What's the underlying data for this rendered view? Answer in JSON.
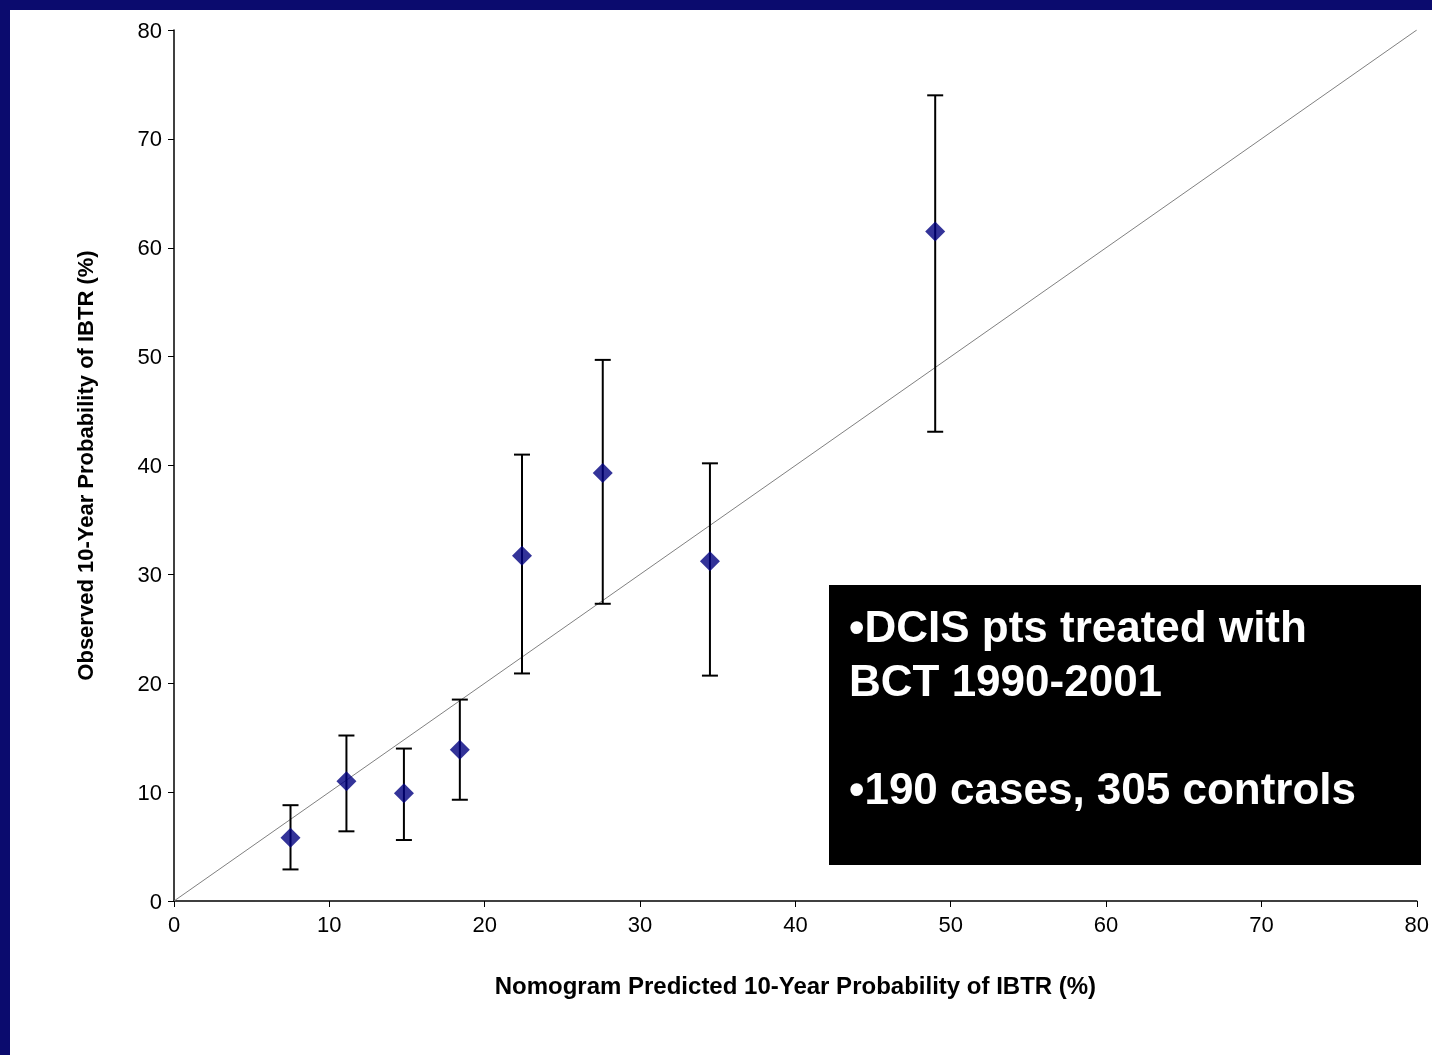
{
  "chart_data": {
    "type": "scatter",
    "xlabel": "Nomogram Predicted 10-Year Probability of IBTR (%)",
    "ylabel": "Observed 10-Year Probability of IBTR (%)",
    "annotations": [
      "•DCIS pts treated with BCT 1990-2001",
      "•190 cases, 305 controls"
    ],
    "series": [
      {
        "color": "#000080",
        "marker": "diamond",
        "x": [
          7.5,
          11.1,
          14.8,
          18.4,
          22.4,
          27.6,
          34.5,
          49.0
        ],
        "values": [
          5.8,
          11.0,
          9.9,
          13.9,
          31.7,
          39.3,
          31.2,
          61.5
        ],
        "errors": [
          [
            2.9,
            8.8
          ],
          [
            6.4,
            15.2
          ],
          [
            5.6,
            14.0
          ],
          [
            9.3,
            18.5
          ],
          [
            20.9,
            41.0
          ],
          [
            27.3,
            49.7
          ],
          [
            20.7,
            40.2
          ],
          [
            43.1,
            74.0
          ]
        ]
      },
      {
        "type": "line",
        "color": "#808080",
        "marker": "none",
        "x": [
          0,
          80
        ],
        "values": [
          0,
          80
        ]
      }
    ],
    "xlim": [
      0,
      80
    ],
    "xticks": [
      0,
      10,
      20,
      30,
      40,
      50,
      60,
      70,
      80
    ],
    "ylim": [
      0,
      80
    ],
    "yticks": [
      0,
      10,
      20,
      30,
      40,
      50,
      60,
      70,
      80
    ],
    "grid": false
  }
}
